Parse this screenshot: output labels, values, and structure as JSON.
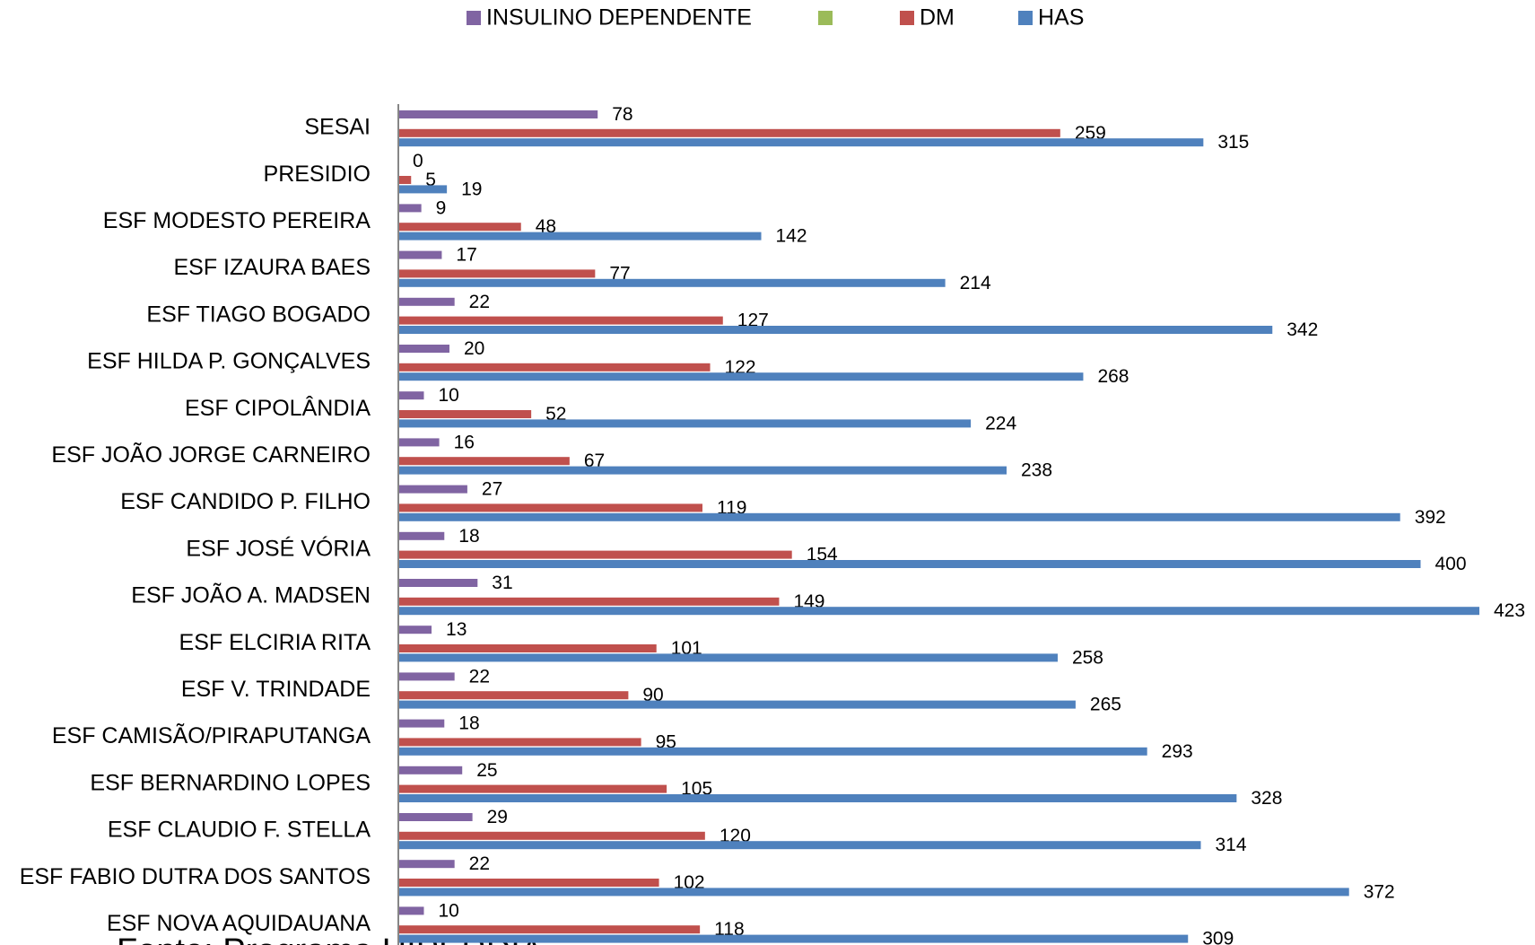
{
  "chart_data": {
    "type": "bar",
    "orientation": "horizontal",
    "categories": [
      "SESAI",
      "PRESIDIO",
      "ESF MODESTO PEREIRA",
      "ESF IZAURA BAES",
      "ESF TIAGO BOGADO",
      "ESF HILDA P. GONÇALVES",
      "ESF CIPOLÂNDIA",
      "ESF JOÃO JORGE CARNEIRO",
      "ESF CANDIDO P. FILHO",
      "ESF JOSÉ VÓRIA",
      "ESF JOÃO A. MADSEN",
      "ESF ELCIRIA RITA",
      "ESF V. TRINDADE",
      "ESF CAMISÃO/PIRAPUTANGA",
      "ESF BERNARDINO LOPES",
      "ESF CLAUDIO F. STELLA",
      "ESF FABIO DUTRA DOS SANTOS",
      "ESF NOVA AQUIDAUANA"
    ],
    "series": [
      {
        "name": "INSULINO DEPENDENTE",
        "color": "#8064a2",
        "values": [
          78,
          0,
          9,
          17,
          22,
          20,
          10,
          16,
          27,
          18,
          31,
          13,
          22,
          18,
          25,
          29,
          22,
          10
        ]
      },
      {
        "name": "DM",
        "color": "#c0504d",
        "values": [
          259,
          5,
          48,
          77,
          127,
          122,
          52,
          67,
          119,
          154,
          149,
          101,
          90,
          95,
          105,
          120,
          102,
          118
        ]
      },
      {
        "name": "HAS",
        "color": "#4f81bd",
        "values": [
          315,
          19,
          142,
          214,
          342,
          268,
          224,
          238,
          392,
          400,
          423,
          258,
          265,
          293,
          328,
          314,
          372,
          309
        ]
      }
    ],
    "xlim": [
      0,
      423
    ],
    "source": "Fonte: Programa HIPERDIA"
  }
}
